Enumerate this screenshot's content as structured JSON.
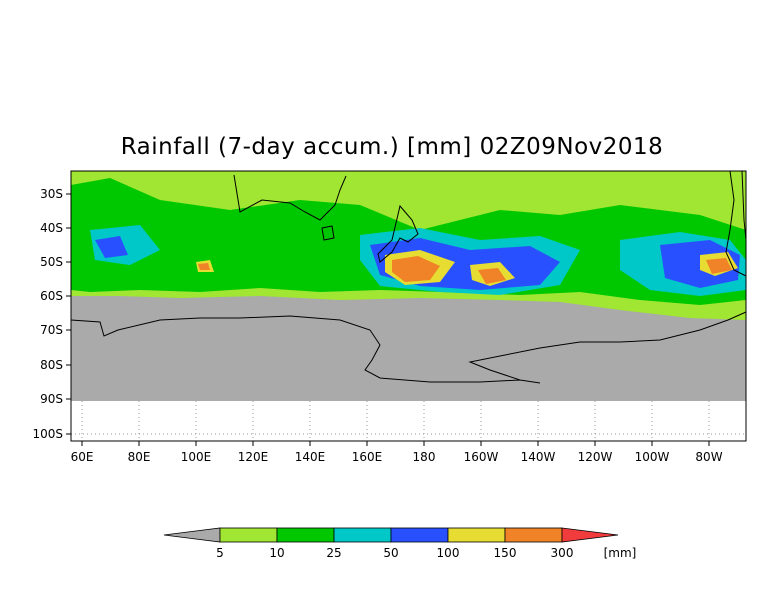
{
  "title": "Rainfall (7-day accum.) [mm] 02Z09Nov2018",
  "map": {
    "lon_labels": [
      "60E",
      "80E",
      "100E",
      "120E",
      "140E",
      "160E",
      "180",
      "160W",
      "140W",
      "120W",
      "100W",
      "80W"
    ],
    "lat_labels": [
      "30S",
      "40S",
      "50S",
      "60S",
      "70S",
      "80S",
      "90S",
      "100S"
    ],
    "colors": {
      "no_data": "#aaaaaa",
      "background": "#ffffff",
      "coast": "#000000",
      "grid": "#999999"
    }
  },
  "colorbar": {
    "levels": [
      "5",
      "10",
      "25",
      "50",
      "100",
      "150",
      "300"
    ],
    "unit": "[mm]",
    "colors": [
      "#aaaaaa",
      "#a0e632",
      "#00c800",
      "#00c8c8",
      "#2850ff",
      "#e6dc32",
      "#f08228",
      "#f03c3c"
    ]
  }
}
